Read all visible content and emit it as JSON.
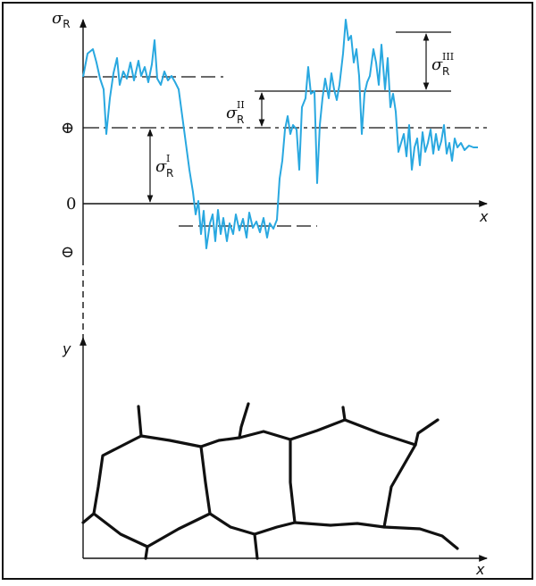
{
  "stress_plot": {
    "y_label": {
      "symbol": "σ",
      "subscript": "R"
    },
    "x_label": "x",
    "markers": [
      "⊕",
      "0",
      "⊖"
    ],
    "levels": [
      {
        "symbol": "σ",
        "subscript": "R",
        "superscript": "I"
      },
      {
        "symbol": "σ",
        "subscript": "R",
        "superscript": "II"
      },
      {
        "symbol": "σ",
        "subscript": "R",
        "superscript": "III"
      }
    ]
  },
  "microstructure": {
    "y_label": "y",
    "x_label": "x"
  }
}
